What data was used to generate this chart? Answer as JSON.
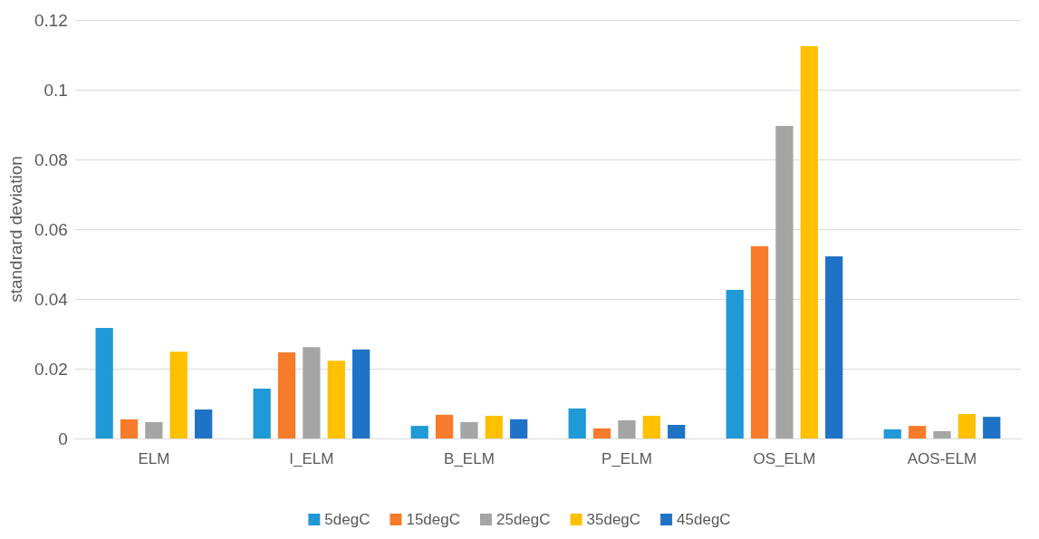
{
  "chart_data": {
    "type": "bar",
    "ylabel": "standrard deviation",
    "categories": [
      "ELM",
      "I_ELM",
      "B_ELM",
      "P_ELM",
      "OS_ELM",
      "AOS-ELM"
    ],
    "series": [
      {
        "name": "5degC",
        "color": "#1f9ad6",
        "values": [
          0.0317,
          0.0143,
          0.0036,
          0.0086,
          0.0426,
          0.0026
        ]
      },
      {
        "name": "15degC",
        "color": "#f77b2a",
        "values": [
          0.0055,
          0.0247,
          0.0068,
          0.0029,
          0.0551,
          0.0036
        ]
      },
      {
        "name": "25degC",
        "color": "#a5a5a5",
        "values": [
          0.0047,
          0.0262,
          0.0047,
          0.0052,
          0.0896,
          0.0021
        ]
      },
      {
        "name": "35degC",
        "color": "#ffc000",
        "values": [
          0.0249,
          0.0223,
          0.0065,
          0.0065,
          0.1125,
          0.007
        ]
      },
      {
        "name": "45degC",
        "color": "#1f73c6",
        "values": [
          0.0083,
          0.0255,
          0.0055,
          0.0039,
          0.0522,
          0.0062
        ]
      }
    ],
    "ylim": [
      0,
      0.12
    ],
    "yticks": [
      0,
      0.02,
      0.04,
      0.06,
      0.08,
      0.1,
      0.12
    ],
    "grid": "y",
    "legend": "bottom"
  }
}
